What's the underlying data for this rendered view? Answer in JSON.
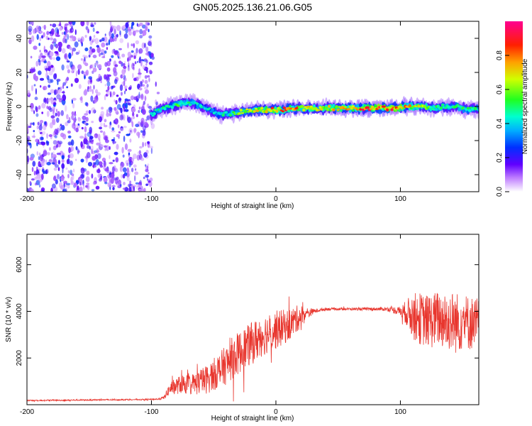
{
  "title": "GN05.2025.136.21.06.G05",
  "colors": {
    "snr_line": "#e8362e",
    "axis": "#000000"
  },
  "chart_data": [
    {
      "type": "heatmap",
      "xlabel": "Height of straight line (km)",
      "ylabel": "Frequency (Hz)",
      "xlim": [
        -200,
        163
      ],
      "ylim": [
        -50,
        50
      ],
      "xticks": [
        -200,
        -100,
        0,
        100
      ],
      "yticks": [
        -40,
        -20,
        0,
        20,
        40
      ],
      "colorbar": {
        "label": "Normalized spectral amplitude",
        "range": [
          0,
          1
        ],
        "ticks": [
          "0.0",
          "0.2",
          "0.4",
          "0.6",
          "0.8"
        ],
        "colormap": [
          "#ff0090",
          "#ff0000",
          "#ff8800",
          "#ffff00",
          "#00ff00",
          "#00ffff",
          "#0080ff",
          "#0000ff",
          "#8000ff",
          "#ffffff"
        ]
      },
      "noise_region_x": [
        -200,
        -100
      ],
      "ridge": [
        {
          "x": -100,
          "f": -5,
          "a": 0.3
        },
        {
          "x": -95,
          "f": -3,
          "a": 0.4
        },
        {
          "x": -85,
          "f": 0,
          "a": 0.45
        },
        {
          "x": -75,
          "f": 2,
          "a": 0.45
        },
        {
          "x": -65,
          "f": 2,
          "a": 0.4
        },
        {
          "x": -55,
          "f": -1,
          "a": 0.35
        },
        {
          "x": -45,
          "f": -5,
          "a": 0.35
        },
        {
          "x": -35,
          "f": -4,
          "a": 0.45
        },
        {
          "x": -25,
          "f": -3,
          "a": 0.55
        },
        {
          "x": -15,
          "f": -2,
          "a": 0.6
        },
        {
          "x": -5,
          "f": -2,
          "a": 0.7
        },
        {
          "x": 5,
          "f": -2,
          "a": 0.75
        },
        {
          "x": 15,
          "f": -1,
          "a": 0.75
        },
        {
          "x": 25,
          "f": -1,
          "a": 0.6
        },
        {
          "x": 40,
          "f": -1,
          "a": 0.6
        },
        {
          "x": 55,
          "f": -1,
          "a": 0.65
        },
        {
          "x": 70,
          "f": -1,
          "a": 0.75
        },
        {
          "x": 85,
          "f": -1,
          "a": 0.85
        },
        {
          "x": 95,
          "f": -1,
          "a": 0.8
        },
        {
          "x": 105,
          "f": 0,
          "a": 0.7
        },
        {
          "x": 115,
          "f": 0,
          "a": 0.6
        },
        {
          "x": 125,
          "f": -1,
          "a": 0.5
        },
        {
          "x": 135,
          "f": 0,
          "a": 0.5
        },
        {
          "x": 145,
          "f": 0,
          "a": 0.45
        },
        {
          "x": 155,
          "f": -2,
          "a": 0.45
        },
        {
          "x": 163,
          "f": -1,
          "a": 0.4
        }
      ]
    },
    {
      "type": "line",
      "xlabel": "Height of straight line (km)",
      "ylabel": "SNR (10 * v/v)",
      "xlim": [
        -200,
        163
      ],
      "ylim": [
        0,
        7300
      ],
      "xticks": [
        -200,
        -100,
        0,
        100
      ],
      "yticks": [
        2000,
        4000,
        6000
      ],
      "series": [
        {
          "x": [
            -200,
            -190,
            -180,
            -170,
            -160,
            -150,
            -140,
            -130,
            -120,
            -110,
            -100,
            -95,
            -90,
            -85,
            -80,
            -75,
            -70,
            -65,
            -60,
            -55,
            -50,
            -45,
            -40,
            -35,
            -30,
            -25,
            -20,
            -15,
            -10,
            -5,
            0,
            5,
            10,
            15,
            20,
            25,
            30,
            35,
            40,
            50,
            60,
            70,
            80,
            90,
            100,
            105,
            110,
            115,
            120,
            125,
            130,
            135,
            140,
            145,
            150,
            155,
            163
          ],
          "center": [
            180,
            180,
            190,
            190,
            200,
            200,
            210,
            210,
            220,
            220,
            230,
            240,
            300,
            700,
            800,
            900,
            850,
            900,
            1000,
            1100,
            1300,
            1500,
            1700,
            2000,
            2200,
            2400,
            2600,
            2800,
            3000,
            3100,
            3200,
            3300,
            3400,
            3600,
            3800,
            3900,
            4000,
            4050,
            4100,
            4100,
            4100,
            4100,
            4100,
            4100,
            4000,
            3950,
            3800,
            3700,
            3600,
            3600,
            3700,
            3600,
            3600,
            3500,
            3600,
            3500,
            3500
          ],
          "spread": [
            40,
            40,
            40,
            40,
            40,
            40,
            40,
            40,
            40,
            40,
            40,
            50,
            100,
            400,
            500,
            600,
            600,
            700,
            800,
            900,
            1000,
            1100,
            1200,
            1300,
            1300,
            1300,
            1300,
            1300,
            1300,
            1200,
            1200,
            1100,
            1000,
            900,
            700,
            400,
            150,
            100,
            90,
            80,
            80,
            90,
            100,
            120,
            300,
            800,
            1400,
            1600,
            1600,
            1700,
            1700,
            1800,
            1900,
            1900,
            1800,
            1700,
            1600
          ]
        }
      ]
    }
  ]
}
